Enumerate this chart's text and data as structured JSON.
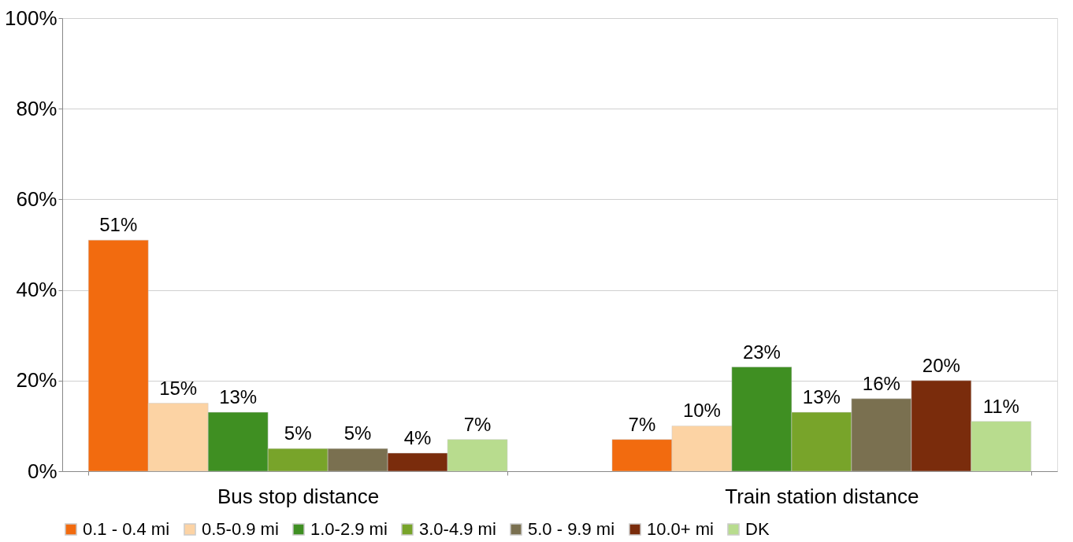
{
  "chart_data": {
    "type": "bar",
    "categories": [
      "Bus stop distance",
      "Train station distance"
    ],
    "series": [
      {
        "name": "0.1 - 0.4 mi",
        "color": "#f26b0f",
        "values": [
          51,
          7
        ],
        "value_labels": [
          "51%",
          "7%"
        ]
      },
      {
        "name": "0.5-0.9 mi",
        "color": "#fcd3a4",
        "values": [
          15,
          10
        ],
        "value_labels": [
          "15%",
          "10%"
        ]
      },
      {
        "name": "1.0-2.9 mi",
        "color": "#3f8f22",
        "values": [
          13,
          23
        ],
        "value_labels": [
          "13%",
          "23%"
        ]
      },
      {
        "name": "3.0-4.9 mi",
        "color": "#78a42a",
        "values": [
          5,
          13
        ],
        "value_labels": [
          "5%",
          "13%"
        ]
      },
      {
        "name": "5.0 - 9.9 mi",
        "color": "#7a7050",
        "values": [
          5,
          16
        ],
        "value_labels": [
          "5%",
          "16%"
        ]
      },
      {
        "name": "10.0+ mi",
        "color": "#7a2c0c",
        "values": [
          4,
          20
        ],
        "value_labels": [
          "4%",
          "20%"
        ]
      },
      {
        "name": "DK",
        "color": "#b8dc8e",
        "values": [
          7,
          11
        ],
        "value_labels": [
          "7%",
          "11%"
        ]
      }
    ],
    "ylim": [
      0,
      100
    ],
    "yticks": [
      {
        "value": 0,
        "label": "0%"
      },
      {
        "value": 20,
        "label": "20%"
      },
      {
        "value": 40,
        "label": "40%"
      },
      {
        "value": 60,
        "label": "60%"
      },
      {
        "value": 80,
        "label": "80%"
      },
      {
        "value": 100,
        "label": "100%"
      }
    ],
    "grid": "y",
    "legend": "bottom"
  }
}
